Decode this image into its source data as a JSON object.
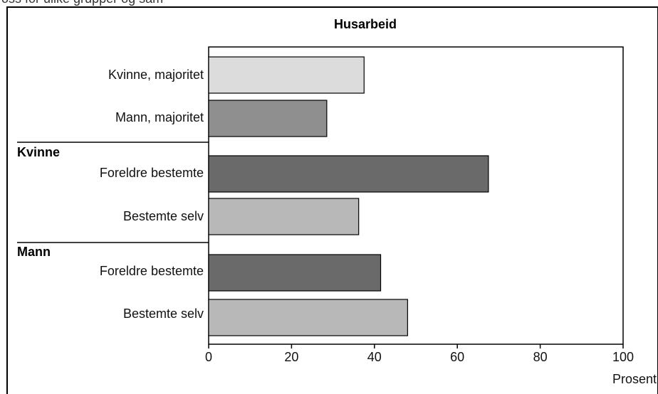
{
  "page": {
    "top_cut_text": "oss for ulike grupper og sam"
  },
  "chart_data": {
    "type": "bar",
    "orientation": "horizontal",
    "title": "Husarbeid",
    "xlabel": "Prosent",
    "xlim": [
      0,
      100
    ],
    "xticks": [
      "0",
      "20",
      "40",
      "60",
      "80",
      "100"
    ],
    "grid": false,
    "legend": "none",
    "groups": [
      {
        "name": "",
        "categories": [
          "Kvinne, majoritet",
          "Mann, majoritet"
        ],
        "values": [
          37.5,
          28.5
        ],
        "colors": [
          "#dcdcdc",
          "#8f8f8f"
        ]
      },
      {
        "name": "Kvinne",
        "categories": [
          "Foreldre bestemte",
          "Bestemte selv"
        ],
        "values": [
          67.5,
          36.2
        ],
        "colors": [
          "#6a6a6a",
          "#b8b8b8"
        ]
      },
      {
        "name": "Mann",
        "categories": [
          "Foreldre bestemte",
          "Bestemte selv"
        ],
        "values": [
          41.5,
          48.0
        ],
        "colors": [
          "#6a6a6a",
          "#b8b8b8"
        ]
      }
    ]
  }
}
